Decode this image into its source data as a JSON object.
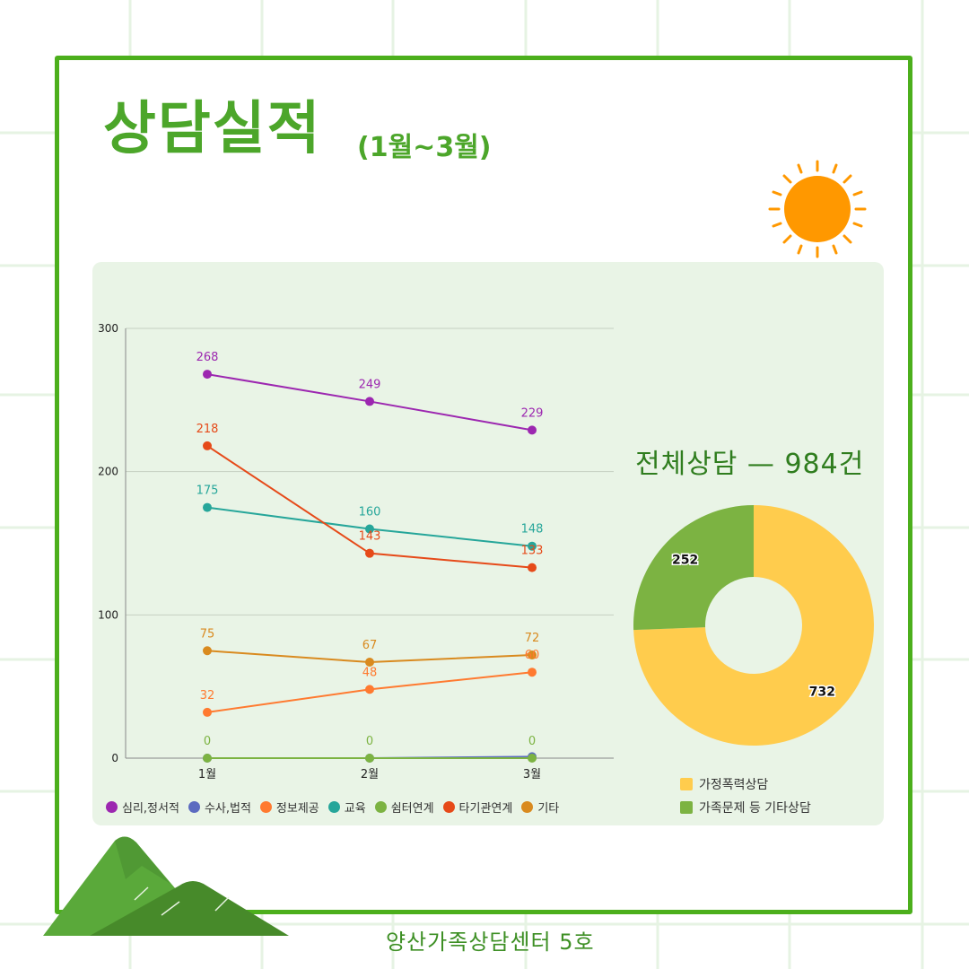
{
  "page": {
    "title": "상담실적",
    "subtitle": "(1월~3월)",
    "total_label": "전체상담 — 984건",
    "footer": "양산가족상담센터 5호"
  },
  "colors": {
    "frame": "#4caf1c",
    "title": "#4ca62a",
    "panel": "#e9f4e6",
    "sun": "#ff9800",
    "mountain": "#5aa93a"
  },
  "chart_data": [
    {
      "type": "line",
      "categories": [
        "1월",
        "2월",
        "3월"
      ],
      "ylim": [
        0,
        300
      ],
      "yticks": [
        0,
        100,
        200,
        300
      ],
      "grid": true,
      "legend_position": "bottom",
      "series": [
        {
          "name": "심리,정서적",
          "color": "#9c27b0",
          "values": [
            268,
            249,
            229
          ]
        },
        {
          "name": "수사,법적",
          "color": "#5c6bc0",
          "values": [
            0,
            0,
            1
          ]
        },
        {
          "name": "정보제공",
          "color": "#ff7a30",
          "values": [
            32,
            48,
            60
          ]
        },
        {
          "name": "교육",
          "color": "#26a69a",
          "values": [
            175,
            160,
            148
          ]
        },
        {
          "name": "쉼터연계",
          "color": "#7cb342",
          "values": [
            0,
            0,
            0
          ]
        },
        {
          "name": "타기관연계",
          "color": "#e64a19",
          "values": [
            218,
            143,
            133
          ]
        },
        {
          "name": "기타",
          "color": "#d98a1f",
          "values": [
            75,
            67,
            72
          ]
        }
      ],
      "labels": [
        {
          "series": 0,
          "text": [
            "268",
            "249",
            "229"
          ]
        },
        {
          "series": 2,
          "text": [
            "32",
            "48",
            "60"
          ]
        },
        {
          "series": 3,
          "text": [
            "175",
            "160",
            "148"
          ]
        },
        {
          "series": 4,
          "text": [
            "0",
            "0",
            "0"
          ]
        },
        {
          "series": 5,
          "text": [
            "218",
            "143",
            "133"
          ]
        },
        {
          "series": 6,
          "text": [
            "75",
            "67",
            "72"
          ]
        }
      ]
    },
    {
      "type": "pie",
      "donut": true,
      "legend_position": "bottom",
      "slices": [
        {
          "name": "가정폭력상담",
          "value": 732,
          "color": "#ffcc4d"
        },
        {
          "name": "가족문제 등 기타상담",
          "value": 252,
          "color": "#7cb342"
        }
      ]
    }
  ]
}
